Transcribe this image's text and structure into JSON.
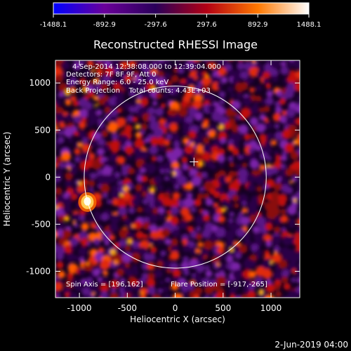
{
  "chart_data": {
    "type": "heatmap",
    "title": "Reconstructed RHESSI Image",
    "xlabel": "Heliocentric X (arcsec)",
    "ylabel": "Heliocentric Y (arcsec)",
    "xlim": [
      -1250,
      1300
    ],
    "ylim": [
      -1280,
      1240
    ],
    "x_ticks": [
      -1000,
      -500,
      0,
      500,
      1000
    ],
    "y_ticks": [
      -1000,
      -500,
      0,
      500,
      1000
    ],
    "x_tick_labels": [
      "-1000",
      "-500",
      "0",
      "500",
      "1000"
    ],
    "y_tick_labels": [
      "-1000",
      "-500",
      "0",
      "500",
      "1000"
    ],
    "colorbar": {
      "range": [
        -1488.1,
        1488.1
      ],
      "tick_values": [
        -1488.1,
        -892.9,
        -297.6,
        297.6,
        892.9,
        1488.1
      ],
      "tick_labels": [
        "-1488.1",
        "-892.9",
        "-297.6",
        "297.6",
        "892.9",
        "1488.1"
      ],
      "colors": [
        "#0000ff",
        "#6a009a",
        "#2a005a",
        "#b40014",
        "#ff7800",
        "#ffffff"
      ]
    },
    "info_lines": [
      "4-Sep-2014 12:38:08.000 to 12:39:04.000",
      "Detectors: 7F 8F 9F, Att 0",
      "Energy Range: 6.0 - 25.0 keV",
      "Back Projection    Total counts: 4.43E+03"
    ],
    "spin_axis": "Spin Axis = [196,162]",
    "flare_position": "Flare Position = [-917,-265]",
    "solar_limb": {
      "center": [
        0,
        0
      ],
      "radius_arcsec": 950,
      "color": "#ffffff"
    },
    "center_marker": {
      "x": 196,
      "y": 162
    },
    "hotspot": {
      "x": -917,
      "y": -265
    },
    "grid": false
  },
  "timestamp": "2-Jun-2019 04:00"
}
